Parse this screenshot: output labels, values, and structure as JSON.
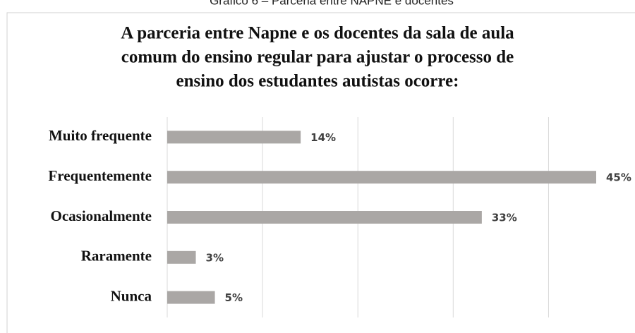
{
  "caption": "Gráfico 6 – Parceria entre NAPNE e docentes",
  "chart_data": {
    "type": "barh",
    "title": [
      "A parceria entre Napne e os docentes da sala de aula",
      "comum do ensino regular para ajustar o processo de",
      "ensino dos estudantes autistas ocorre:"
    ],
    "categories": [
      "Muito frequente",
      "Frequentemente",
      "Ocasionalmente",
      "Raramente",
      "Nunca"
    ],
    "values": [
      14,
      45,
      33,
      3,
      5
    ],
    "value_labels": [
      "14%",
      "45%",
      "33%",
      "3%",
      "5%"
    ],
    "color": "#aaa7a5",
    "xlim": [
      0,
      45
    ],
    "xticks": [
      0,
      10,
      20,
      30,
      40
    ],
    "grid": true
  }
}
